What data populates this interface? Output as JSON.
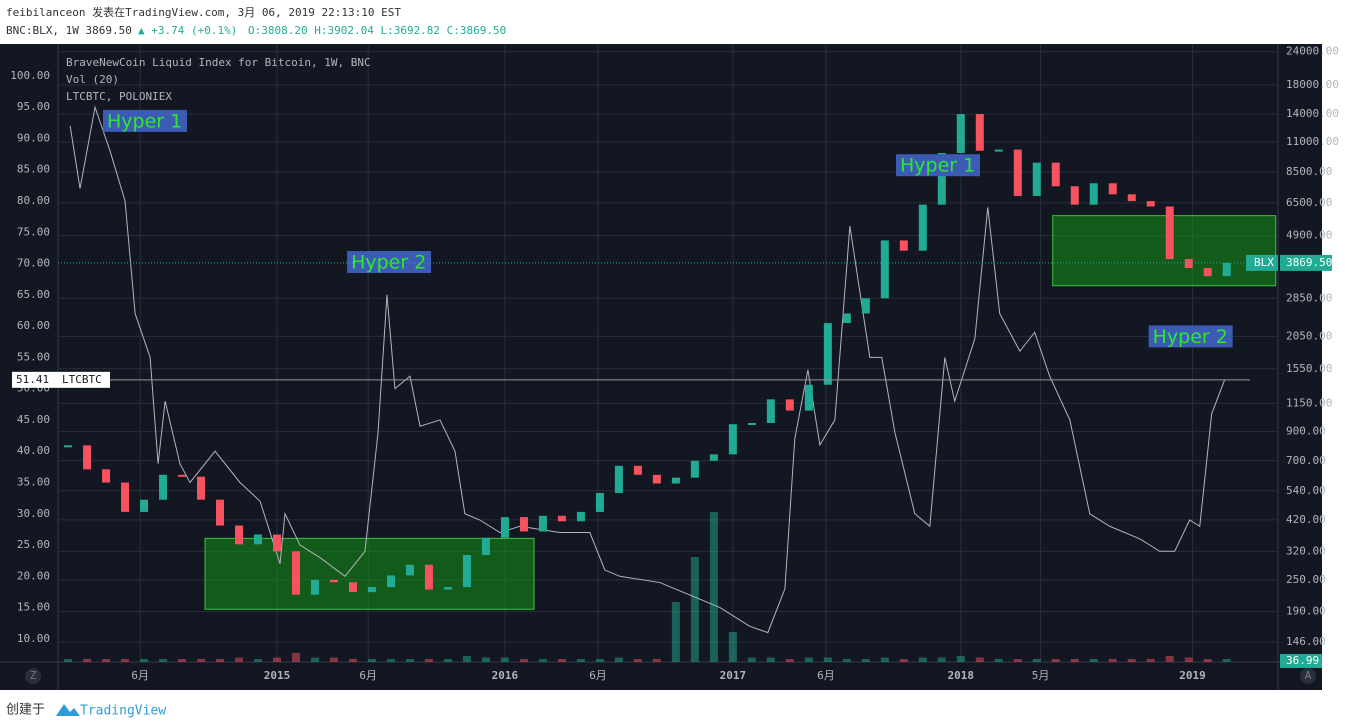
{
  "header": {
    "line1": "feibilanceon 发表在TradingView.com, 3月 06, 2019 22:13:10 EST",
    "symbol": "BNC:BLX, 1W 3869.50",
    "change": "▲ +3.74 (+0.1%)",
    "ohlc": "O:3808.20 H:3902.04 L:3692.82 C:3869.50"
  },
  "legend": [
    "BraveNewCoin Liquid Index for Bitcoin, 1W, BNC",
    "Vol (20)",
    "LTCBTC, POLONIEX"
  ],
  "footer": {
    "created": "创建于",
    "brand": "TradingView"
  },
  "buttons": [
    "Z",
    "A"
  ],
  "chart_data": {
    "type": "candlestick",
    "xlim": [
      0.47,
      64.7
    ],
    "xticks": [
      {
        "value": 4.8,
        "label": "6月"
      },
      {
        "value": 12,
        "label": "2015"
      },
      {
        "value": 16.8,
        "label": "6月"
      },
      {
        "value": 24,
        "label": "2016"
      },
      {
        "value": 28.9,
        "label": "6月"
      },
      {
        "value": 36,
        "label": "2017"
      },
      {
        "value": 40.9,
        "label": "6月"
      },
      {
        "value": 48,
        "label": "2018"
      },
      {
        "value": 52.2,
        "label": "5月"
      },
      {
        "value": 60.2,
        "label": "2019"
      }
    ],
    "ylim": [
      6.3,
      105.1
    ],
    "yticks": [
      {
        "value": 10,
        "label": "10.00"
      },
      {
        "value": 15,
        "label": "15.00"
      },
      {
        "value": 20,
        "label": "20.00"
      },
      {
        "value": 25,
        "label": "25.00"
      },
      {
        "value": 30,
        "label": "30.00"
      },
      {
        "value": 35,
        "label": "35.00"
      },
      {
        "value": 40,
        "label": "40.00"
      },
      {
        "value": 45,
        "label": "45.00"
      },
      {
        "value": 50,
        "label": "50.00"
      },
      {
        "value": 55,
        "label": "55.00"
      },
      {
        "value": 60,
        "label": "60.00"
      },
      {
        "value": 65,
        "label": "65.00"
      },
      {
        "value": 70,
        "label": "70.00"
      },
      {
        "value": 75,
        "label": "75.00"
      },
      {
        "value": 80,
        "label": "80.00"
      },
      {
        "value": 85,
        "label": "85.00"
      },
      {
        "value": 90,
        "label": "90.00"
      },
      {
        "value": 95,
        "label": "95.00"
      },
      {
        "value": 100,
        "label": "100.00"
      }
    ],
    "y2lim": [
      123,
      25650
    ],
    "y2log": true,
    "y2ticks": [
      {
        "value": 146,
        "label": "146.00"
      },
      {
        "value": 190,
        "label": "190.00"
      },
      {
        "value": 250,
        "label": "250.00"
      },
      {
        "value": 320,
        "label": "320.00"
      },
      {
        "value": 420,
        "label": "420.00"
      },
      {
        "value": 540,
        "label": "540.00"
      },
      {
        "value": 700,
        "label": "700.00"
      },
      {
        "value": 900,
        "label": "900.00"
      },
      {
        "value": 1150,
        "label": "1150.00"
      },
      {
        "value": 1550,
        "label": "1550.00"
      },
      {
        "value": 2050,
        "label": "2050.00"
      },
      {
        "value": 2850,
        "label": "2850.00"
      },
      {
        "value": 4900,
        "label": "4900.00"
      },
      {
        "value": 6500,
        "label": "6500.00"
      },
      {
        "value": 8500,
        "label": "8500.00"
      },
      {
        "value": 11000,
        "label": "11000.00"
      },
      {
        "value": 14000,
        "label": "14000.00"
      },
      {
        "value": 18000,
        "label": "18000.00"
      },
      {
        "value": 24000,
        "label": "24000.00"
      }
    ],
    "grid": true,
    "series": [
      {
        "name": "BLX",
        "axis": "y2",
        "up_color": "#22ab94",
        "down_color": "#f7525f",
        "last_label": "3869.50",
        "x": [
          1,
          2,
          3,
          4,
          5,
          6,
          7,
          8,
          9,
          10,
          11,
          12,
          13,
          14,
          15,
          16,
          17,
          18,
          19,
          20,
          21,
          22,
          23,
          24,
          25,
          26,
          27,
          28,
          29,
          30,
          31,
          32,
          33,
          34,
          35,
          36,
          37,
          38,
          39,
          40,
          41,
          42,
          43,
          44,
          45,
          46,
          47,
          48,
          49,
          50,
          51,
          52,
          53,
          54,
          55,
          56,
          57,
          58,
          59,
          60,
          61,
          62
        ],
        "values": [
          800,
          650,
          580,
          450,
          500,
          620,
          610,
          500,
          400,
          340,
          370,
          320,
          220,
          250,
          245,
          225,
          235,
          260,
          285,
          230,
          235,
          310,
          360,
          430,
          380,
          435,
          415,
          450,
          530,
          670,
          620,
          575,
          605,
          700,
          740,
          960,
          970,
          1190,
          1080,
          1350,
          2300,
          2500,
          2850,
          4700,
          4300,
          6400,
          10000,
          14000,
          10200,
          10300,
          6900,
          9200,
          7500,
          6400,
          7700,
          7000,
          6600,
          6300,
          4000,
          3700,
          3450,
          3869.5
        ]
      },
      {
        "name": "LTCBTC",
        "color": "#b2b5be",
        "last_label": "51.41",
        "x": [
          1.11,
          1.63,
          2.42,
          3.21,
          4.0,
          4.53,
          5.32,
          5.74,
          6.11,
          6.89,
          7.42,
          8.74,
          10.05,
          11.11,
          12.16,
          12.42,
          13.21,
          14.26,
          15.58,
          16.63,
          17.32,
          17.79,
          18.21,
          19.0,
          19.53,
          20.58,
          21.37,
          21.89,
          22.68,
          23.74,
          24.79,
          26.89,
          28.47,
          29.26,
          30.05,
          32.16,
          33.74,
          35.32,
          36.89,
          37.84,
          38.74,
          39.26,
          39.95,
          40.58,
          41.37,
          42.16,
          43.21,
          43.84,
          44.53,
          45.58,
          46.37,
          47.16,
          47.68,
          48.74,
          49.42,
          50.05,
          51.11,
          51.89,
          52.68,
          53.74,
          54.79,
          55.84,
          57.42,
          58.47,
          59.26,
          60.05,
          60.58,
          61.21,
          61.89
        ],
        "values": [
          92,
          82,
          95,
          88,
          80,
          62,
          55,
          38,
          48,
          38,
          35,
          40,
          35,
          32,
          22,
          30,
          25,
          23,
          20,
          24,
          43,
          65,
          50,
          52,
          44,
          45,
          40,
          30,
          29,
          27,
          28,
          27,
          27,
          21,
          20,
          19,
          17,
          15,
          12,
          11,
          18,
          42,
          53,
          41,
          45,
          76,
          55,
          55,
          43,
          30,
          28,
          55,
          48,
          58,
          79,
          62,
          56,
          59,
          52,
          45,
          30,
          28,
          26,
          24,
          24,
          29,
          28,
          46,
          51.41
        ]
      },
      {
        "name": "Vol",
        "vlim": [
          0,
          100
        ],
        "last_label": "36.99",
        "values": [
          2,
          2,
          2,
          2,
          2,
          2,
          2,
          2,
          2,
          3,
          2,
          3,
          6,
          3,
          3,
          2,
          2,
          2,
          2,
          2,
          2,
          4,
          3,
          3,
          2,
          2,
          2,
          2,
          2,
          3,
          2,
          2,
          40,
          70,
          100,
          20,
          3,
          3,
          2,
          3,
          3,
          2,
          2,
          3,
          2,
          3,
          3,
          4,
          3,
          2,
          2,
          2,
          2,
          2,
          2,
          2,
          2,
          2,
          4,
          3,
          2,
          2
        ]
      }
    ],
    "boxes": [
      {
        "x1": 8.21,
        "x2": 25.53,
        "y1": 194,
        "y2": 358
      },
      {
        "x1": 52.84,
        "x2": 64.58,
        "y1": 3177,
        "y2": 5820
      }
    ],
    "annotations": [
      {
        "text": "Hyper 1",
        "x": 3.05,
        "y2": 13200
      },
      {
        "text": "Hyper 2",
        "x": 15.9,
        "y2": 3900
      },
      {
        "text": "Hyper 1",
        "x": 44.8,
        "y2": 9000
      },
      {
        "text": "Hyper 2",
        "x": 58.1,
        "y2": 2050
      }
    ]
  }
}
